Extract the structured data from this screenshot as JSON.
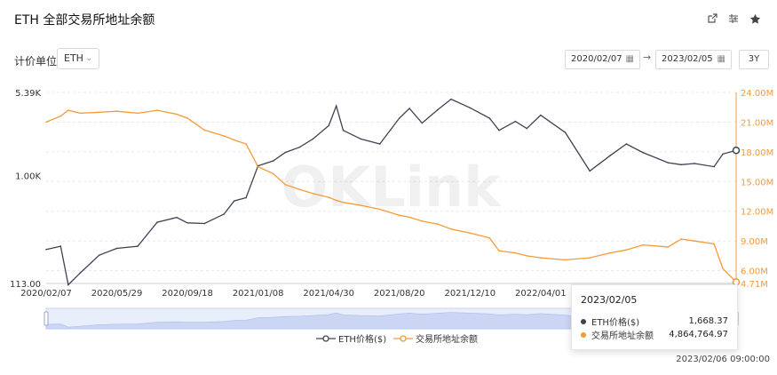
{
  "header": {
    "title": "ETH 全部交易所地址余额",
    "icons": [
      "share-icon",
      "settings-icon",
      "star-icon"
    ]
  },
  "controls": {
    "unit_label": "计价单位",
    "unit_value": "ETH",
    "date_from": "2020/02/07",
    "date_to": "2023/02/05",
    "range_button": "3Y"
  },
  "tooltip": {
    "date": "2023/02/05",
    "rows": [
      {
        "label": "ETH价格($)",
        "value": "1,668.37",
        "color": "#3d4352"
      },
      {
        "label": "交易所地址余额",
        "value": "4,864,764.97",
        "color": "#f59a36"
      }
    ]
  },
  "timestamp": "2023/02/06 09:00:00",
  "watermark": "OKLink",
  "chart_data": {
    "type": "line",
    "x_tick_labels": [
      "2020/02/07",
      "2020/05/29",
      "2020/09/18",
      "2021/01/08",
      "2021/04/30",
      "2021/08/20",
      "2021/12/10",
      "2022/04/01"
    ],
    "y_left_ticks": [
      "5.39K",
      "1.00K",
      "113.00"
    ],
    "y_left_scale": "log",
    "y_left_range": [
      113,
      5390
    ],
    "y_right_ticks": [
      "24.00M",
      "21.00M",
      "18.00M",
      "15.00M",
      "12.00M",
      "9.00M",
      "6.00M",
      "4.71M"
    ],
    "y_right_range": [
      4.71,
      24
    ],
    "legend": [
      "ETH价格($)",
      "交易所地址余额"
    ],
    "legend_position": "bottom-center",
    "colors": {
      "price": "#3d4352",
      "balance": "#f59a36",
      "grid": "#e8e8e8",
      "right_axis": "#f59a36"
    },
    "x": [
      "2020-02-07",
      "2020-03-01",
      "2020-03-13",
      "2020-04-01",
      "2020-05-01",
      "2020-05-29",
      "2020-07-01",
      "2020-08-01",
      "2020-09-01",
      "2020-09-18",
      "2020-10-15",
      "2020-11-15",
      "2020-12-01",
      "2020-12-20",
      "2021-01-08",
      "2021-02-01",
      "2021-02-20",
      "2021-03-15",
      "2021-04-05",
      "2021-04-30",
      "2021-05-12",
      "2021-05-23",
      "2021-06-20",
      "2021-07-20",
      "2021-08-20",
      "2021-09-05",
      "2021-09-25",
      "2021-10-20",
      "2021-11-10",
      "2021-12-10",
      "2022-01-10",
      "2022-01-25",
      "2022-02-20",
      "2022-03-10",
      "2022-04-01",
      "2022-05-10",
      "2022-06-18",
      "2022-07-20",
      "2022-08-15",
      "2022-09-10",
      "2022-10-20",
      "2022-11-10",
      "2022-12-01",
      "2023-01-01",
      "2023-01-15",
      "2023-02-05"
    ],
    "series": [
      {
        "name": "ETH价格($)",
        "axis": "left",
        "values": [
          225,
          240,
          110,
          140,
          200,
          230,
          240,
          390,
          430,
          385,
          380,
          460,
          600,
          640,
          1220,
          1350,
          1600,
          1780,
          2100,
          2750,
          4100,
          2500,
          2100,
          1900,
          3200,
          3900,
          2900,
          3800,
          4700,
          3950,
          3200,
          2500,
          3000,
          2600,
          3400,
          2400,
          1100,
          1500,
          1900,
          1600,
          1300,
          1250,
          1280,
          1200,
          1550,
          1668.37
        ]
      },
      {
        "name": "交易所地址余额",
        "axis": "right",
        "values": [
          21.0,
          21.6,
          22.2,
          21.9,
          22.0,
          22.1,
          21.9,
          22.2,
          21.8,
          21.4,
          20.2,
          19.6,
          19.2,
          18.8,
          16.5,
          15.8,
          14.7,
          14.2,
          13.8,
          13.4,
          13.1,
          12.9,
          12.6,
          12.2,
          11.6,
          11.4,
          11.0,
          10.7,
          10.2,
          9.8,
          9.3,
          8.0,
          7.8,
          7.5,
          7.3,
          7.1,
          7.3,
          7.8,
          8.1,
          8.6,
          8.4,
          9.2,
          9.0,
          8.7,
          6.2,
          4.86
        ]
      }
    ]
  }
}
